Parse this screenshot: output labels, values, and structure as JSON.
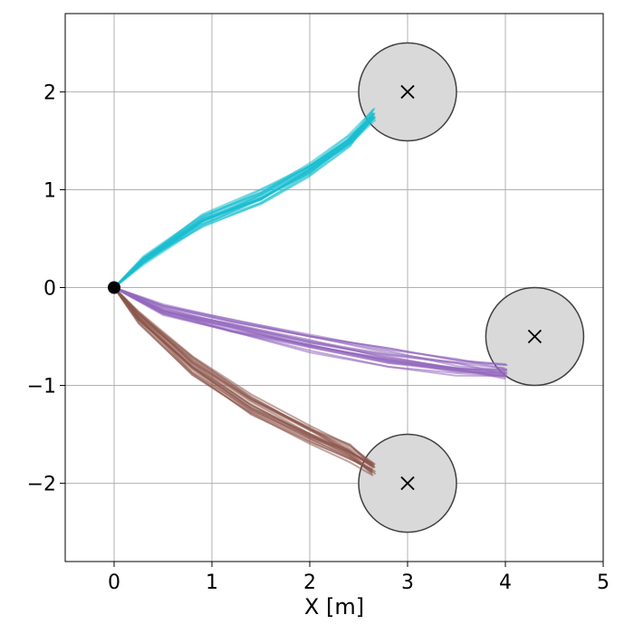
{
  "chart_data": {
    "type": "line",
    "title": "",
    "xlabel": "X [m]",
    "ylabel": "",
    "xlim": [
      -0.5,
      5.0
    ],
    "ylim": [
      -2.8,
      2.8
    ],
    "x_ticks": [
      0,
      1,
      2,
      3,
      4,
      5
    ],
    "x_tick_labels": [
      "0",
      "1",
      "2",
      "3",
      "4",
      "5"
    ],
    "y_ticks": [
      -2,
      -1,
      0,
      1,
      2
    ],
    "y_tick_labels": [
      "−2",
      "−1",
      "0",
      "1",
      "2"
    ],
    "grid": true,
    "start_point": {
      "x": 0,
      "y": 0,
      "color": "#000000"
    },
    "goals": [
      {
        "x": 3.0,
        "y": 2.0,
        "radius": 0.5
      },
      {
        "x": 4.3,
        "y": -0.5,
        "radius": 0.5
      },
      {
        "x": 3.0,
        "y": -2.0,
        "radius": 0.5
      }
    ],
    "goal_fill": "#d9d9d9",
    "goal_edge": "#404040",
    "series": [
      {
        "color": "#17becf",
        "trajectory_count": 20,
        "path": [
          [
            0,
            0
          ],
          [
            0.3,
            0.28
          ],
          [
            0.9,
            0.68
          ],
          [
            1.5,
            0.92
          ],
          [
            2.0,
            1.2
          ],
          [
            2.4,
            1.48
          ],
          [
            2.65,
            1.75
          ]
        ]
      },
      {
        "color": "#9467bd",
        "trajectory_count": 20,
        "path": [
          [
            0,
            0
          ],
          [
            0.5,
            -0.22
          ],
          [
            1.2,
            -0.38
          ],
          [
            2.0,
            -0.55
          ],
          [
            2.8,
            -0.7
          ],
          [
            3.5,
            -0.8
          ],
          [
            4.0,
            -0.85
          ]
        ]
      },
      {
        "color": "#8c564b",
        "trajectory_count": 20,
        "path": [
          [
            0,
            0
          ],
          [
            0.25,
            -0.3
          ],
          [
            0.8,
            -0.8
          ],
          [
            1.4,
            -1.2
          ],
          [
            2.0,
            -1.5
          ],
          [
            2.4,
            -1.68
          ],
          [
            2.65,
            -1.85
          ]
        ]
      }
    ]
  }
}
